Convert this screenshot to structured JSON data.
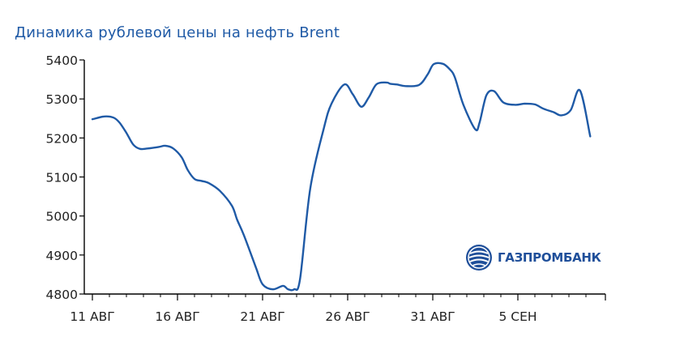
{
  "chart_data": {
    "type": "line",
    "title": "Динамика рублевой цены на нефть Brent",
    "xlabel": "",
    "ylabel": "",
    "ylim": [
      4800,
      5400
    ],
    "yticks": [
      4800,
      4900,
      5000,
      5100,
      5200,
      5300,
      5400
    ],
    "x_tick_labels": [
      {
        "x": 0,
        "label": "11 АВГ"
      },
      {
        "x": 5,
        "label": "16 АВГ"
      },
      {
        "x": 10,
        "label": "21 АВГ"
      },
      {
        "x": 15,
        "label": "26 АВГ"
      },
      {
        "x": 20,
        "label": "31 АВГ"
      },
      {
        "x": 25,
        "label": "5 СЕН"
      }
    ],
    "xlim": [
      0,
      29.5
    ],
    "grid": false,
    "line_color": "#1f5aa6",
    "series": [
      {
        "x": [
          0,
          0.7,
          1.25,
          1.6,
          2.0,
          2.4,
          2.8,
          3.25,
          3.9,
          4.3,
          4.75,
          5.25,
          5.6,
          6.0,
          6.4,
          6.85,
          7.5,
          8.2,
          8.5,
          8.9,
          9.6,
          10.0,
          10.6,
          11.2,
          11.5,
          11.85,
          12.2,
          12.8,
          13.6,
          14.05,
          14.8,
          15.3,
          15.8,
          16.25,
          16.7,
          17.3,
          17.5,
          17.9,
          18.4,
          19.2,
          19.7,
          20.05,
          20.6,
          21.0,
          21.3,
          21.8,
          22.5,
          22.75,
          23.15,
          23.6,
          24.15,
          24.85,
          25.4,
          26.0,
          26.5,
          27.1,
          27.55,
          28.1,
          28.65,
          29.25
        ],
        "y": [
          5248,
          5255,
          5252,
          5239,
          5213,
          5183,
          5172,
          5173,
          5177,
          5180,
          5173,
          5150,
          5118,
          5095,
          5090,
          5084,
          5064,
          5026,
          4991,
          4951,
          4869,
          4825,
          4812,
          4821,
          4812,
          4812,
          4838,
          5070,
          5225,
          5288,
          5337,
          5312,
          5280,
          5305,
          5338,
          5342,
          5339,
          5337,
          5333,
          5336,
          5363,
          5389,
          5390,
          5376,
          5355,
          5285,
          5222,
          5240,
          5309,
          5320,
          5291,
          5285,
          5288,
          5286,
          5275,
          5266,
          5258,
          5271,
          5322,
          5204
        ]
      }
    ]
  },
  "logo": {
    "name": "ГАЗПРОМБАНК",
    "color": "#1f4f9a"
  }
}
